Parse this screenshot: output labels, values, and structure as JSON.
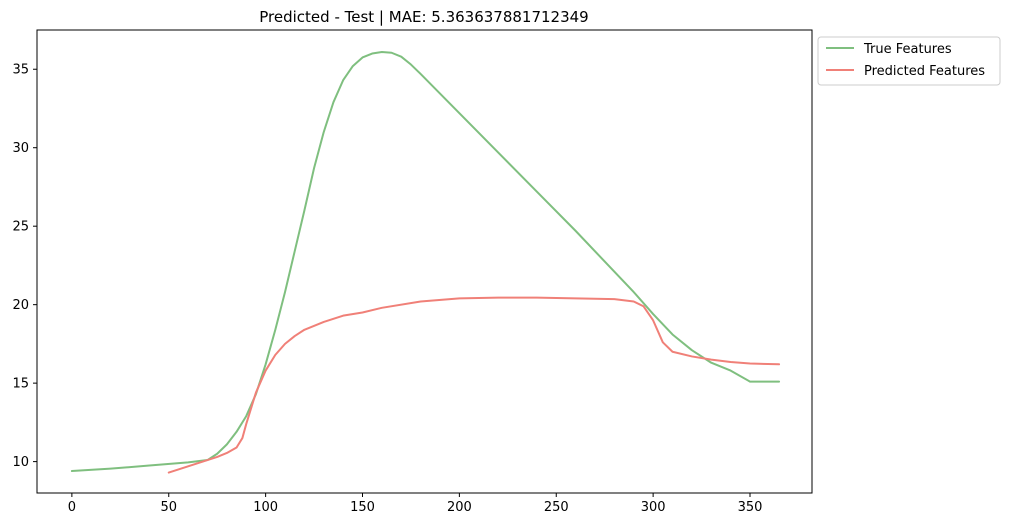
{
  "chart_data": {
    "type": "line",
    "title": "Predicted - Test | MAE: 5.363637881712349",
    "xlabel": "",
    "ylabel": "",
    "xlim": [
      -18,
      382
    ],
    "ylim": [
      8.0,
      37.5
    ],
    "xticks": [
      0,
      50,
      100,
      150,
      200,
      250,
      300,
      350
    ],
    "yticks": [
      10,
      15,
      20,
      25,
      30,
      35
    ],
    "grid": false,
    "legend_position": "outside-top-right",
    "series": [
      {
        "name": "True Features",
        "color": "#7fbf7f",
        "x": [
          0,
          20,
          40,
          60,
          70,
          75,
          80,
          85,
          90,
          95,
          100,
          105,
          110,
          115,
          120,
          125,
          130,
          135,
          140,
          145,
          150,
          155,
          160,
          165,
          170,
          175,
          180,
          200,
          220,
          240,
          260,
          280,
          290,
          300,
          310,
          320,
          330,
          340,
          350,
          365
        ],
        "y": [
          9.4,
          9.55,
          9.75,
          9.95,
          10.1,
          10.5,
          11.1,
          11.9,
          12.9,
          14.3,
          16.2,
          18.4,
          20.8,
          23.4,
          26.0,
          28.7,
          31.0,
          32.9,
          34.3,
          35.2,
          35.75,
          36.0,
          36.1,
          36.05,
          35.8,
          35.3,
          34.7,
          32.2,
          29.7,
          27.2,
          24.7,
          22.1,
          20.8,
          19.4,
          18.1,
          17.1,
          16.3,
          15.8,
          15.1,
          15.1
        ]
      },
      {
        "name": "Predicted Features",
        "color": "#f08078",
        "x": [
          50,
          55,
          60,
          65,
          70,
          75,
          80,
          85,
          88,
          90,
          95,
          100,
          105,
          110,
          115,
          120,
          130,
          140,
          150,
          160,
          180,
          200,
          220,
          240,
          260,
          280,
          290,
          295,
          300,
          305,
          310,
          320,
          330,
          340,
          350,
          365
        ],
        "y": [
          9.3,
          9.5,
          9.7,
          9.9,
          10.1,
          10.3,
          10.55,
          10.9,
          11.5,
          12.4,
          14.4,
          15.8,
          16.8,
          17.5,
          18.0,
          18.4,
          18.9,
          19.3,
          19.5,
          19.8,
          20.2,
          20.4,
          20.45,
          20.45,
          20.4,
          20.35,
          20.2,
          19.9,
          19.0,
          17.6,
          17.0,
          16.7,
          16.5,
          16.35,
          16.25,
          16.2
        ]
      }
    ]
  }
}
